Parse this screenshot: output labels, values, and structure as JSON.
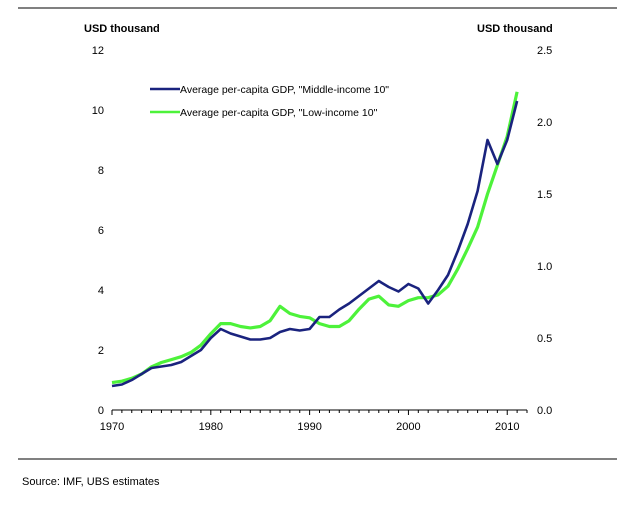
{
  "chart_data": {
    "type": "line",
    "left_unit": "USD thousand",
    "right_unit": "USD thousand",
    "x_ticks": [
      "1970",
      "1980",
      "1990",
      "2000",
      "2010"
    ],
    "left_ticks": [
      "0",
      "2",
      "4",
      "6",
      "8",
      "10",
      "12"
    ],
    "right_ticks": [
      "0.0",
      "0.5",
      "1.0",
      "1.5",
      "2.0",
      "2.5"
    ],
    "xlim": [
      1970,
      2012
    ],
    "left_ylim": [
      0,
      12
    ],
    "right_ylim": [
      0,
      2.5
    ],
    "grid": false,
    "legend_position": "top-left",
    "series": [
      {
        "name": "Average per-capita GDP, \"Middle-income 10\"",
        "axis": "left",
        "color": "#1a237e",
        "x": [
          1970,
          1971,
          1972,
          1973,
          1974,
          1975,
          1976,
          1977,
          1978,
          1979,
          1980,
          1981,
          1982,
          1983,
          1984,
          1985,
          1986,
          1987,
          1988,
          1989,
          1990,
          1991,
          1992,
          1993,
          1994,
          1995,
          1996,
          1997,
          1998,
          1999,
          2000,
          2001,
          2002,
          2003,
          2004,
          2005,
          2006,
          2007,
          2008,
          2009,
          2010,
          2011
        ],
        "values": [
          0.8,
          0.85,
          1.0,
          1.2,
          1.4,
          1.45,
          1.5,
          1.6,
          1.8,
          2.0,
          2.4,
          2.7,
          2.55,
          2.45,
          2.35,
          2.35,
          2.4,
          2.6,
          2.7,
          2.65,
          2.7,
          3.1,
          3.1,
          3.35,
          3.55,
          3.8,
          4.05,
          4.3,
          4.1,
          3.95,
          4.2,
          4.05,
          3.55,
          4.0,
          4.5,
          5.3,
          6.2,
          7.3,
          9.0,
          8.2,
          9.0,
          10.3
        ]
      },
      {
        "name": "Average per-capita GDP, \"Low-income 10\"",
        "axis": "right",
        "color": "#4df23a",
        "x": [
          1970,
          1971,
          1972,
          1973,
          1974,
          1975,
          1976,
          1977,
          1978,
          1979,
          1980,
          1981,
          1982,
          1983,
          1984,
          1985,
          1986,
          1987,
          1988,
          1989,
          1990,
          1991,
          1992,
          1993,
          1994,
          1995,
          1996,
          1997,
          1998,
          1999,
          2000,
          2001,
          2002,
          2003,
          2004,
          2005,
          2006,
          2007,
          2008,
          2009,
          2010,
          2011
        ],
        "values": [
          0.19,
          0.2,
          0.22,
          0.25,
          0.3,
          0.33,
          0.35,
          0.37,
          0.4,
          0.45,
          0.53,
          0.6,
          0.6,
          0.58,
          0.57,
          0.58,
          0.62,
          0.72,
          0.67,
          0.65,
          0.64,
          0.6,
          0.58,
          0.58,
          0.62,
          0.7,
          0.77,
          0.79,
          0.73,
          0.72,
          0.76,
          0.78,
          0.78,
          0.8,
          0.86,
          0.98,
          1.12,
          1.27,
          1.5,
          1.7,
          1.9,
          2.21
        ]
      }
    ]
  },
  "source_text": "Source: IMF, UBS estimates"
}
